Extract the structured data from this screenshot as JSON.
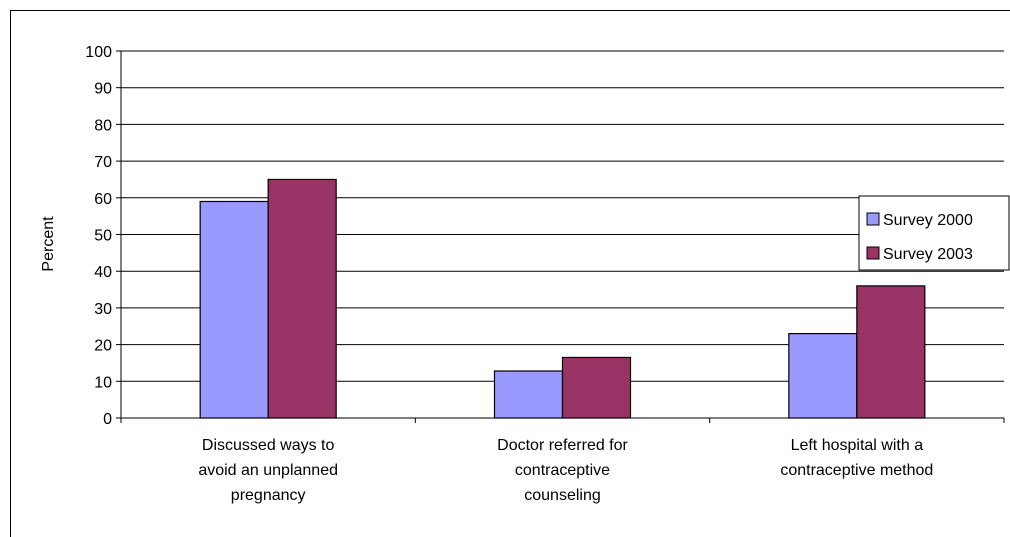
{
  "chart_data": {
    "type": "bar",
    "title": "",
    "xlabel": "",
    "ylabel": "Percent",
    "ylim": [
      0,
      100
    ],
    "yticks": [
      0,
      10,
      20,
      30,
      40,
      50,
      60,
      70,
      80,
      90,
      100
    ],
    "grid": true,
    "legend_position": "right",
    "categories": [
      [
        "Discussed ways to",
        "avoid an unplanned",
        "pregnancy"
      ],
      [
        "Doctor referred for",
        "contraceptive",
        "counseling"
      ],
      [
        "Left  hospital with a",
        "contraceptive method"
      ]
    ],
    "series": [
      {
        "name": "Survey 2000",
        "color": "#9999ff",
        "values": [
          59,
          12.8,
          23
        ]
      },
      {
        "name": "Survey 2003",
        "color": "#993366",
        "values": [
          65,
          16.5,
          36
        ]
      }
    ]
  }
}
